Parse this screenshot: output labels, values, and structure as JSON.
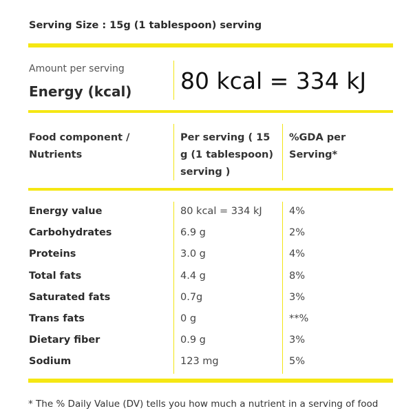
{
  "serving_size": "Serving Size : 15g (1 tablespoon) serving",
  "summary": {
    "amount_label": "Amount per serving",
    "energy_label": "Energy (kcal)",
    "energy_value": "80 kcal = 334 kJ"
  },
  "table": {
    "headers": [
      "Food component / Nutrients",
      "Per serving ( 15 g (1 tablespoon) serving )",
      "%GDA per Serving*"
    ],
    "rows": [
      {
        "name": "Energy value",
        "value": "80 kcal = 334 kJ",
        "gda": "4%"
      },
      {
        "name": "Carbohydrates",
        "value": "6.9 g",
        "gda": "2%"
      },
      {
        "name": "Proteins",
        "value": "3.0 g",
        "gda": "4%"
      },
      {
        "name": "Total fats",
        "value": "4.4 g",
        "gda": "8%"
      },
      {
        "name": "Saturated fats",
        "value": "0.7g",
        "gda": "3%"
      },
      {
        "name": "Trans fats",
        "value": "0 g",
        "gda": "**%"
      },
      {
        "name": "Dietary fiber",
        "value": "0.9 g",
        "gda": "3%"
      },
      {
        "name": "Sodium",
        "value": "123 mg",
        "gda": "5%"
      }
    ]
  },
  "footnote": "* The % Daily Value (DV) tells you how much a nutrient in a serving of food",
  "colors": {
    "accent": "#f5e713",
    "text": "#222222",
    "background": "#ffffff"
  }
}
